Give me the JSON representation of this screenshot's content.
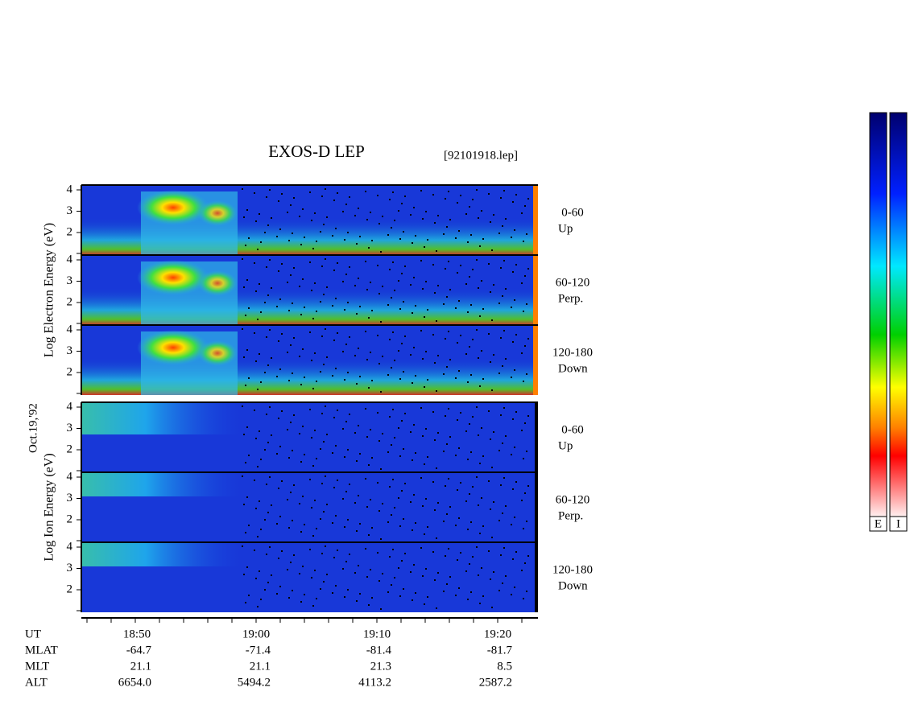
{
  "title": "EXOS-D LEP",
  "file": "[92101918.lep]",
  "date": "Oct.19,'92",
  "groups": [
    {
      "label": "Log Electron Energy (eV)",
      "panels": [
        {
          "range": "0-60",
          "direction": "Up"
        },
        {
          "range": "60-120",
          "direction": "Perp."
        },
        {
          "range": "120-180",
          "direction": "Down"
        }
      ]
    },
    {
      "label": "Log Ion Energy (eV)",
      "panels": [
        {
          "range": "0-60",
          "direction": "Up"
        },
        {
          "range": "60-120",
          "direction": "Perp."
        },
        {
          "range": "120-180",
          "direction": "Down"
        }
      ]
    }
  ],
  "yticks": [
    "4",
    "3",
    "2"
  ],
  "ephemeris": {
    "rows": [
      {
        "name": "UT",
        "values": [
          "18:50",
          "19:00",
          "19:10",
          "19:20"
        ]
      },
      {
        "name": "MLAT",
        "values": [
          "-64.7",
          "-71.4",
          "-81.4",
          "-81.7"
        ]
      },
      {
        "name": "MLT",
        "values": [
          "21.1",
          "21.1",
          "21.3",
          "8.5"
        ]
      },
      {
        "name": "ALT",
        "values": [
          "6654.0",
          "5494.2",
          "4113.2",
          "2587.2"
        ]
      }
    ]
  },
  "colorbar": {
    "labels": [
      "E",
      "I"
    ]
  }
}
